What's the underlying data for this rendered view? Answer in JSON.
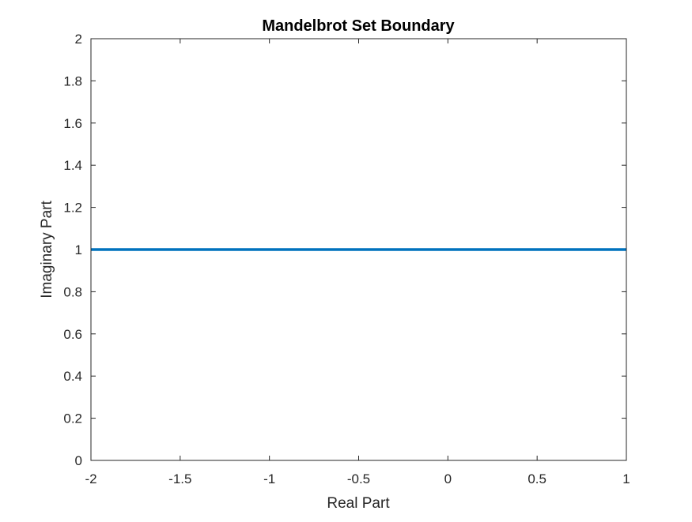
{
  "chart_data": {
    "type": "line",
    "title": "Mandelbrot Set Boundary",
    "xlabel": "Real Part",
    "ylabel": "Imaginary Part",
    "xlim": [
      -2,
      1
    ],
    "ylim": [
      0,
      2
    ],
    "xticks": [
      "-2",
      "-1.5",
      "-1",
      "-0.5",
      "0",
      "0.5",
      "1"
    ],
    "yticks": [
      "0",
      "0.2",
      "0.4",
      "0.6",
      "0.8",
      "1",
      "1.2",
      "1.4",
      "1.6",
      "1.8",
      "2"
    ],
    "grid": false,
    "series": [
      {
        "x": [
          -2,
          1
        ],
        "y": [
          1,
          1
        ],
        "color": "#0072BD"
      }
    ],
    "colors": {
      "axis": "#262626",
      "line": "#0072BD",
      "background": "#ffffff"
    }
  }
}
